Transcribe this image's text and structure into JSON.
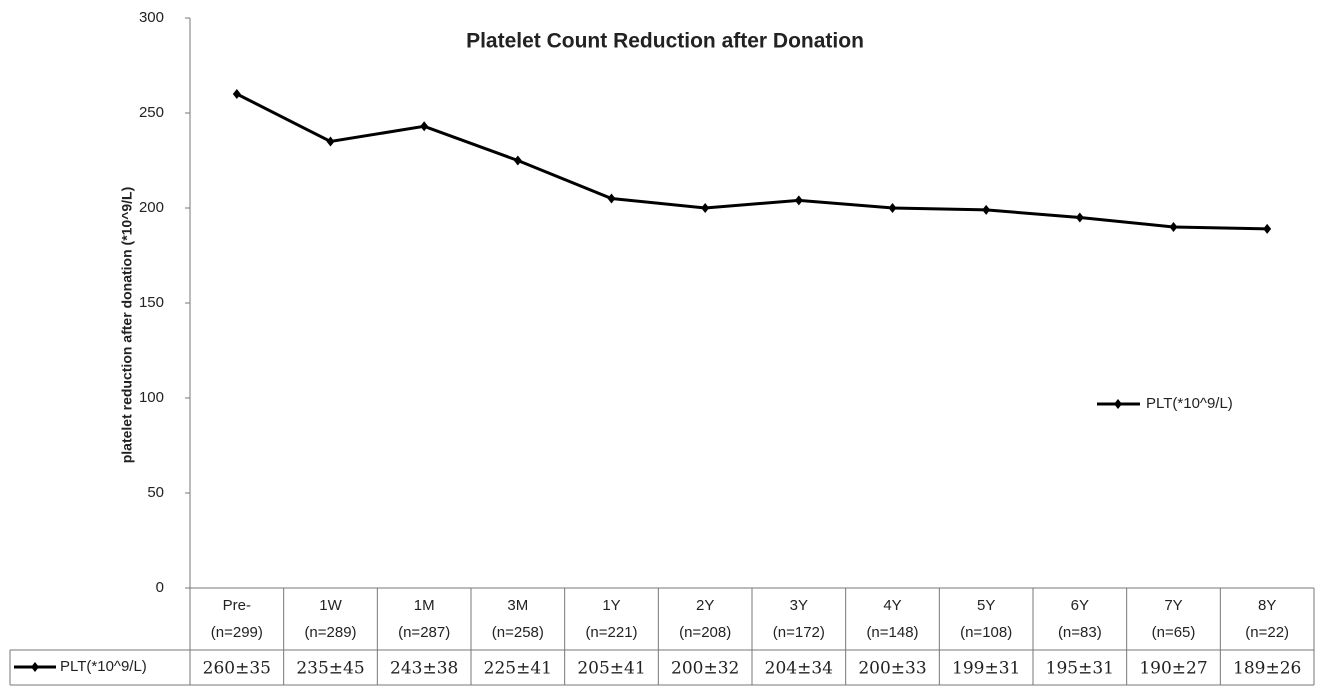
{
  "chart_data": {
    "type": "line",
    "title": "Platelet  Count Reduction after Donation",
    "y_label": "platelet reduction after donation  (*10^9/L)",
    "categories": [
      "Pre-",
      "1W",
      "1M",
      "3M",
      "1Y",
      "2Y",
      "3Y",
      "4Y",
      "5Y",
      "6Y",
      "7Y",
      "8Y"
    ],
    "sample_sizes": [
      "(n=299)",
      "(n=289)",
      "(n=287)",
      "(n=258)",
      "(n=221)",
      "(n=208)",
      "(n=172)",
      "(n=148)",
      "(n=108)",
      "(n=83)",
      "(n=65)",
      "(n=22)"
    ],
    "series": [
      {
        "name": "PLT(*10^9/L)",
        "color": "#000000",
        "values": [
          260,
          235,
          243,
          225,
          205,
          200,
          204,
          200,
          199,
          195,
          190,
          189
        ],
        "value_labels": [
          "260±35",
          "235±45",
          "243±38",
          "225±41",
          "205±41",
          "200±32",
          "204±34",
          "200±33",
          "199±31",
          "195±31",
          "190±27",
          "189±26"
        ]
      }
    ],
    "ylim": [
      0,
      300
    ],
    "yticks": [
      0,
      50,
      100,
      150,
      200,
      250,
      300
    ],
    "grid": false,
    "legend": "right"
  }
}
